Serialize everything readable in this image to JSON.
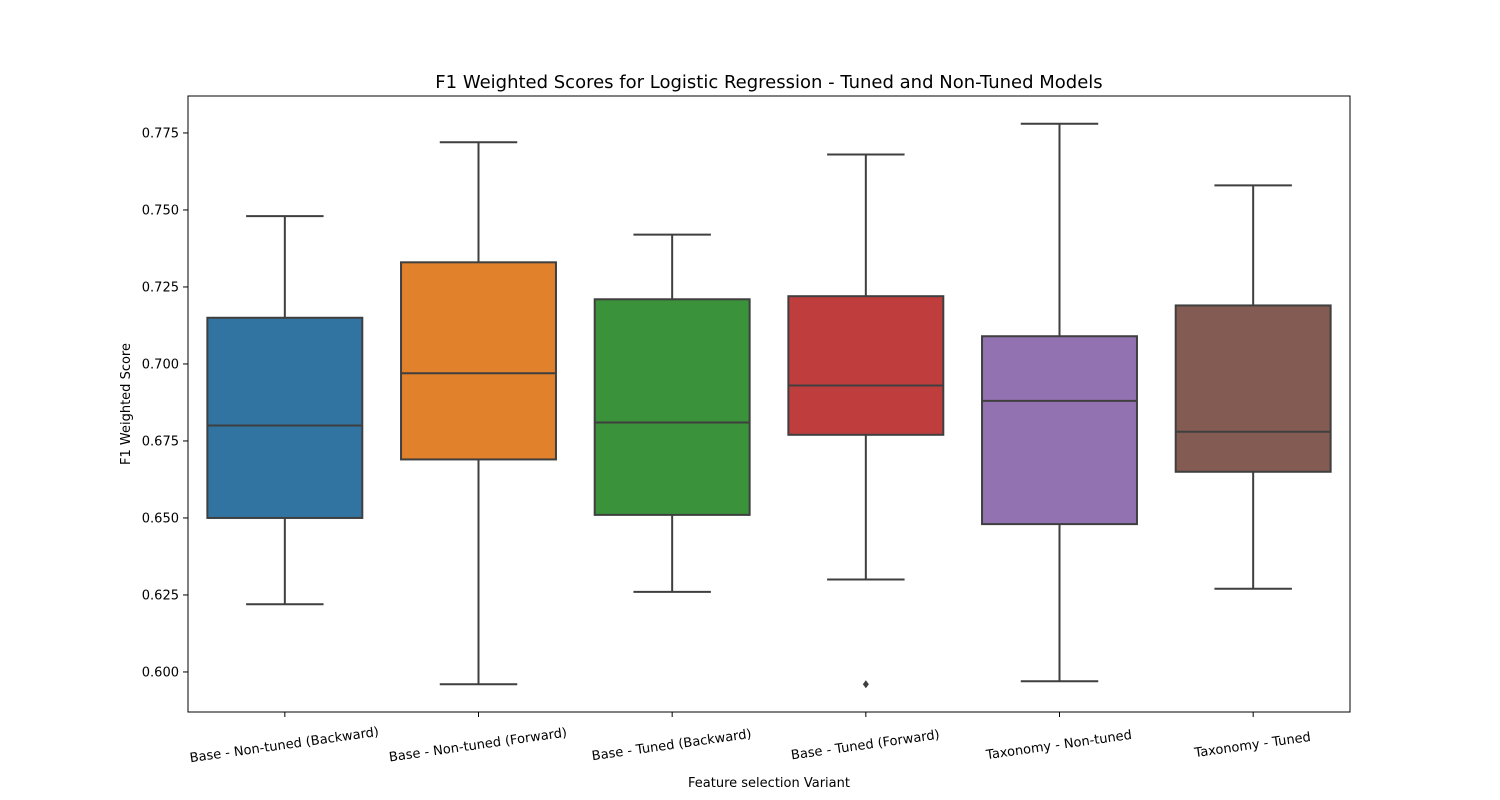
{
  "chart_data": {
    "type": "box",
    "title": "F1 Weighted Scores for Logistic Regression - Tuned and Non-Tuned Models",
    "xlabel": "Feature selection Variant",
    "ylabel": "F1 Weighted Score",
    "ylim": [
      0.587,
      0.787
    ],
    "yticks": [
      0.6,
      0.625,
      0.65,
      0.675,
      0.7,
      0.725,
      0.75,
      0.775
    ],
    "ytick_labels": [
      "0.600",
      "0.625",
      "0.650",
      "0.675",
      "0.700",
      "0.725",
      "0.750",
      "0.775"
    ],
    "grid": false,
    "line_color": "#3f3f3f",
    "categories": [
      "Base - Non-tuned (Backward)",
      "Base - Non-tuned (Forward)",
      "Base - Tuned (Backward)",
      "Base - Tuned (Forward)",
      "Taxonomy - Non-tuned",
      "Taxonomy - Tuned"
    ],
    "boxes": [
      {
        "whisker_low": 0.622,
        "q1": 0.65,
        "median": 0.68,
        "q3": 0.715,
        "whisker_high": 0.748,
        "outliers": [],
        "color": "#3274a1"
      },
      {
        "whisker_low": 0.596,
        "q1": 0.669,
        "median": 0.697,
        "q3": 0.733,
        "whisker_high": 0.772,
        "outliers": [],
        "color": "#e1812c"
      },
      {
        "whisker_low": 0.626,
        "q1": 0.651,
        "median": 0.681,
        "q3": 0.721,
        "whisker_high": 0.742,
        "outliers": [],
        "color": "#3a923a"
      },
      {
        "whisker_low": 0.63,
        "q1": 0.677,
        "median": 0.693,
        "q3": 0.722,
        "whisker_high": 0.768,
        "outliers": [
          0.596
        ],
        "color": "#c03d3e"
      },
      {
        "whisker_low": 0.597,
        "q1": 0.648,
        "median": 0.688,
        "q3": 0.709,
        "whisker_high": 0.778,
        "outliers": [],
        "color": "#9372b2"
      },
      {
        "whisker_low": 0.627,
        "q1": 0.665,
        "median": 0.678,
        "q3": 0.719,
        "whisker_high": 0.758,
        "outliers": [],
        "color": "#845b53"
      }
    ]
  }
}
